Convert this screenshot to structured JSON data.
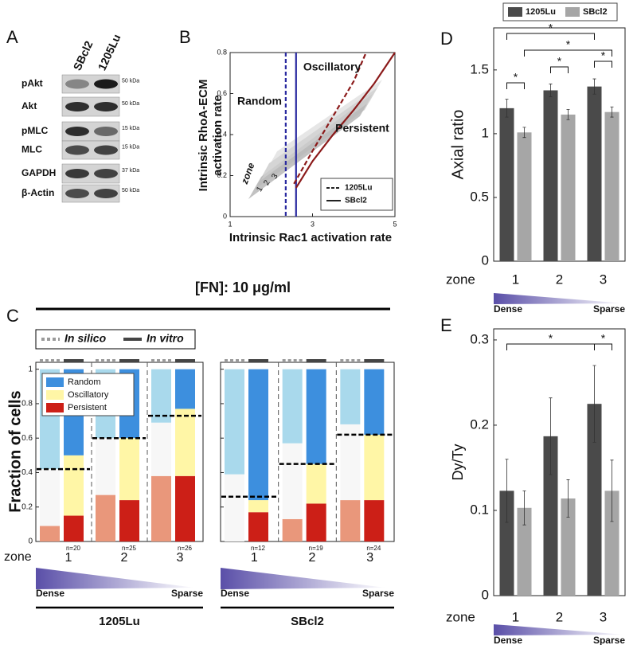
{
  "panel_letters": [
    "A",
    "B",
    "C",
    "D",
    "E"
  ],
  "blot": {
    "lanes": [
      "SBcl2",
      "1205Lu"
    ],
    "rows": [
      {
        "label": "pAkt",
        "kda": "50 kDa"
      },
      {
        "label": "Akt",
        "kda": "50 kDa"
      },
      {
        "label": "pMLC",
        "kda": "15 kDa"
      },
      {
        "label": "MLC",
        "kda": "15 kDa"
      },
      {
        "label": "GAPDH",
        "kda": "37 kDa"
      },
      {
        "label": "β-Actin",
        "kda": "50 kDa"
      }
    ]
  },
  "chart_data": [
    {
      "type": "line",
      "xlabel": "Intrinsic Rac1 activation rate",
      "ylabel": [
        "Intrinsic RhoA-ECM",
        "activation rate"
      ],
      "xlim": [
        1,
        5
      ],
      "ylim": [
        0,
        0.8
      ],
      "xticks": [
        1,
        3,
        5
      ],
      "yticks": [
        0,
        0.2,
        0.4,
        0.6,
        0.8
      ],
      "series": [
        {
          "name": "1205Lu",
          "color": "#8b1a1a",
          "dash": true,
          "x": [
            2.55,
            3.0,
            3.5,
            4.0,
            4.3
          ],
          "values": [
            0.16,
            0.32,
            0.49,
            0.66,
            0.8
          ]
        },
        {
          "name": "SBcl2",
          "color": "#8b1a1a",
          "dash": false,
          "x": [
            2.6,
            3.0,
            3.5,
            4.0,
            4.5,
            5.0
          ],
          "values": [
            0.14,
            0.27,
            0.4,
            0.52,
            0.65,
            0.8
          ]
        }
      ],
      "vlines": [
        {
          "x": 2.35,
          "color": "#2a2aa0",
          "dash": true
        },
        {
          "x": 2.6,
          "color": "#2a2aa0",
          "dash": false
        }
      ],
      "annotations": [
        "Random",
        "Oscillatory",
        "Persistent"
      ],
      "zone_title": "zone",
      "zones": [
        "1",
        "2",
        "3"
      ],
      "legend": "lower right"
    },
    {
      "type": "stacked-bar",
      "title": "[FN]: 10 μg/ml",
      "ylabel": "Fraction of cells",
      "xlabel": "zone",
      "ylim": [
        0,
        1.04
      ],
      "yticks": [
        0,
        0.2,
        0.4,
        0.6,
        0.8,
        1
      ],
      "methods": [
        {
          "name": "In silico",
          "color": "#9a9a9a",
          "dash": true
        },
        {
          "name": "In vitro",
          "color": "#454545",
          "dash": false
        }
      ],
      "series": [
        {
          "name": "Random",
          "colors": [
            "#a9d9ec",
            "#3d8fde"
          ]
        },
        {
          "name": "Oscillatory",
          "colors": [
            "#f7f7f7",
            "#fff6a6"
          ]
        },
        {
          "name": "Persistent",
          "colors": [
            "#e9977b",
            "#cc1f17"
          ]
        }
      ],
      "gradient": [
        "Dense",
        "Sparse"
      ],
      "groups": [
        {
          "name": "1205Lu",
          "categories": [
            "1",
            "2",
            "3"
          ],
          "n": [
            "n=20",
            "n=25",
            "n=26"
          ],
          "thresholds": [
            0.42,
            0.6,
            0.73
          ],
          "series": [
            {
              "silico": [
                0.58,
                0.4,
                0.31
              ],
              "vitro": [
                0.5,
                0.4,
                0.23
              ]
            },
            {
              "silico": [
                0.33,
                0.33,
                0.31
              ],
              "vitro": [
                0.35,
                0.36,
                0.39
              ]
            },
            {
              "silico": [
                0.09,
                0.27,
                0.38
              ],
              "vitro": [
                0.15,
                0.24,
                0.38
              ]
            }
          ]
        },
        {
          "name": "SBcl2",
          "categories": [
            "1",
            "2",
            "3"
          ],
          "n": [
            "n=12",
            "n=19",
            "n=24"
          ],
          "thresholds": [
            0.26,
            0.45,
            0.62
          ],
          "series": [
            {
              "silico": [
                0.61,
                0.43,
                0.32
              ],
              "vitro": [
                0.76,
                0.55,
                0.38
              ]
            },
            {
              "silico": [
                0.39,
                0.44,
                0.44
              ],
              "vitro": [
                0.07,
                0.23,
                0.38
              ]
            },
            {
              "silico": [
                0,
                0.13,
                0.24
              ],
              "vitro": [
                0.17,
                0.22,
                0.24
              ]
            }
          ]
        }
      ]
    },
    {
      "type": "bar",
      "ylabel": "Axial ratio",
      "xlabel": "zone",
      "categories": [
        "1",
        "2",
        "3"
      ],
      "ylim": [
        0,
        1.83
      ],
      "yticks": [
        0,
        0.5,
        1,
        1.5
      ],
      "series": [
        {
          "name": "1205Lu",
          "color": "#4a4a4a",
          "values": [
            1.2,
            1.34,
            1.37
          ],
          "errors": [
            0.07,
            0.05,
            0.06
          ]
        },
        {
          "name": "SBcl2",
          "color": "#a6a6a6",
          "values": [
            1.01,
            1.15,
            1.17
          ],
          "errors": [
            0.04,
            0.04,
            0.04
          ]
        }
      ],
      "significance": [
        "*",
        "*",
        "*",
        "*",
        "*"
      ],
      "gradient": [
        "Dense",
        "Sparse"
      ],
      "legend": "top"
    },
    {
      "type": "bar",
      "ylabel": "Dy/Ty",
      "xlabel": "zone",
      "categories": [
        "1",
        "2",
        "3"
      ],
      "ylim": [
        0,
        0.313
      ],
      "yticks": [
        0,
        0.1,
        0.2,
        0.3
      ],
      "series": [
        {
          "name": "1205Lu",
          "color": "#4a4a4a",
          "values": [
            0.123,
            0.187,
            0.225
          ],
          "errors": [
            0.037,
            0.045,
            0.045
          ]
        },
        {
          "name": "SBcl2",
          "color": "#a6a6a6",
          "values": [
            0.103,
            0.114,
            0.123
          ],
          "errors": [
            0.02,
            0.022,
            0.036
          ]
        }
      ],
      "significance": [
        "*",
        "*"
      ],
      "gradient": [
        "Dense",
        "Sparse"
      ]
    }
  ]
}
